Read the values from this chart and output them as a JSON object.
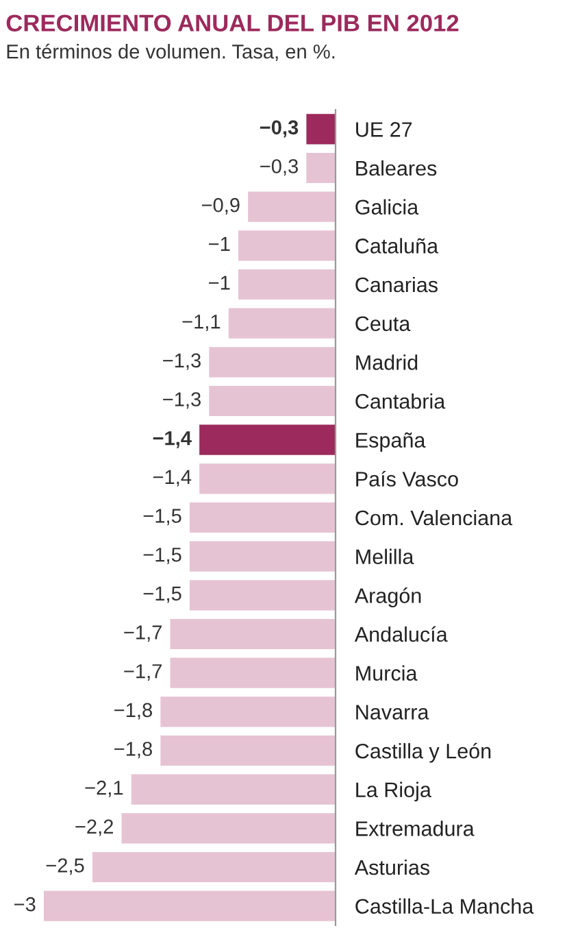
{
  "chart_data": {
    "type": "bar",
    "orientation": "horizontal",
    "title": "CRECIMIENTO ANUAL DEL PIB EN 2012",
    "subtitle": "En términos de volumen. Tasa, en %.",
    "categories": [
      "UE 27",
      "Baleares",
      "Galicia",
      "Cataluña",
      "Canarias",
      "Ceuta",
      "Madrid",
      "Cantabria",
      "España",
      "País Vasco",
      "Com. Valenciana",
      "Melilla",
      "Aragón",
      "Andalucía",
      "Murcia",
      "Navarra",
      "Castilla y León",
      "La Rioja",
      "Extremadura",
      "Asturias",
      "Castilla-La Mancha"
    ],
    "values": [
      -0.3,
      -0.3,
      -0.9,
      -1,
      -1,
      -1.1,
      -1.3,
      -1.3,
      -1.4,
      -1.4,
      -1.5,
      -1.5,
      -1.5,
      -1.7,
      -1.7,
      -1.8,
      -1.8,
      -2.1,
      -2.2,
      -2.5,
      -3
    ],
    "colors": [
      "#9c2a5c",
      "#e6c3d3",
      "#e6c3d3",
      "#e6c3d3",
      "#e6c3d3",
      "#e6c3d3",
      "#e6c3d3",
      "#e6c3d3",
      "#9c2a5c",
      "#e6c3d3",
      "#e6c3d3",
      "#e6c3d3",
      "#e6c3d3",
      "#e6c3d3",
      "#e6c3d3",
      "#e6c3d3",
      "#e6c3d3",
      "#e6c3d3",
      "#e6c3d3",
      "#e6c3d3",
      "#e6c3d3"
    ],
    "value_labels": [
      "−0,3",
      "−0,3",
      "−0,9",
      "−1",
      "−1",
      "−1,1",
      "−1,3",
      "−1,3",
      "−1,4",
      "−1,4",
      "−1,5",
      "−1,5",
      "−1,5",
      "−1,7",
      "−1,7",
      "−1,8",
      "−1,8",
      "−2,1",
      "−2,2",
      "−2,5",
      "−3"
    ]
  }
}
